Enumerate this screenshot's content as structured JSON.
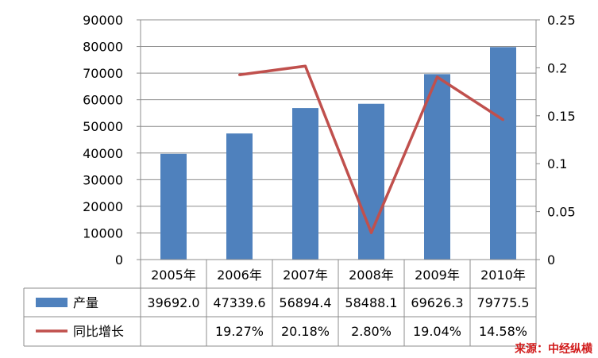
{
  "chart_data": {
    "type": "bar",
    "categories": [
      "2005年",
      "2006年",
      "2007年",
      "2008年",
      "2009年",
      "2010年"
    ],
    "series": [
      {
        "name": "产量",
        "kind": "bar",
        "axis": "left",
        "color": "#4f81bd",
        "values": [
          39692.0,
          47339.6,
          56894.4,
          58488.1,
          69626.3,
          79775.5
        ],
        "labels": [
          "39692.0",
          "47339.6",
          "56894.4",
          "58488.1",
          "69626.3",
          "79775.5"
        ]
      },
      {
        "name": "同比增长",
        "kind": "line",
        "axis": "right",
        "color": "#c0504d",
        "values": [
          null,
          0.1927,
          0.2018,
          0.028,
          0.1904,
          0.1458
        ],
        "labels": [
          "",
          "19.27%",
          "20.18%",
          "2.80%",
          "19.04%",
          "14.58%"
        ]
      }
    ],
    "y_left": {
      "lim": [
        0,
        90000
      ],
      "ticks": [
        0,
        10000,
        20000,
        30000,
        40000,
        50000,
        60000,
        70000,
        80000,
        90000
      ],
      "tick_labels": [
        "0",
        "10000",
        "20000",
        "30000",
        "40000",
        "50000",
        "60000",
        "70000",
        "80000",
        "90000"
      ]
    },
    "y_right": {
      "lim": [
        0,
        0.25
      ],
      "ticks": [
        0,
        0.05,
        0.1,
        0.15,
        0.2,
        0.25
      ],
      "tick_labels": [
        "0",
        "0.05",
        "0.1",
        "0.15",
        "0.2",
        "0.25"
      ]
    },
    "grid": true,
    "data_table": true,
    "source": "来源：中经纵横"
  }
}
